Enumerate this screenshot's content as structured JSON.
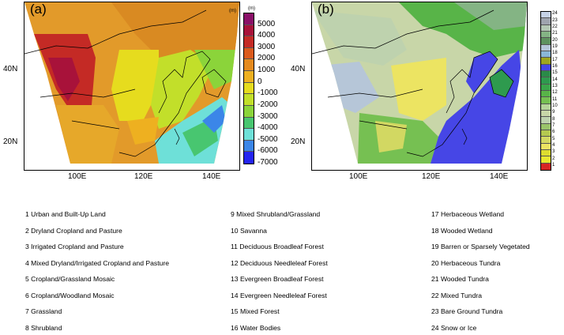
{
  "panels": [
    {
      "id": "a",
      "label": "(a)",
      "x_ticks": [
        "100E",
        "120E",
        "140E"
      ],
      "y_ticks": [
        "40N",
        "20N"
      ],
      "colorbar": {
        "unit": "(m)",
        "labels": [
          "5000",
          "4000",
          "3000",
          "2000",
          "1000",
          "0",
          "-1000",
          "-2000",
          "-3000",
          "-4000",
          "-5000",
          "-6000",
          "-7000"
        ],
        "colors": [
          "#8a1068",
          "#a8123a",
          "#c42a25",
          "#db5a1c",
          "#e58a1e",
          "#eeb020",
          "#e6dc1e",
          "#c2df2a",
          "#8bd43a",
          "#48c670",
          "#6ee0d8",
          "#3b86e8",
          "#2424f0"
        ]
      }
    },
    {
      "id": "b",
      "label": "(b)",
      "x_ticks": [
        "100E",
        "120E",
        "140E"
      ],
      "y_ticks": [
        "40N",
        "20N"
      ],
      "colorbar": {
        "labels": [
          "24",
          "23",
          "22",
          "21",
          "20",
          "19",
          "18",
          "17",
          "16",
          "15",
          "14",
          "13",
          "12",
          "11",
          "10",
          "9",
          "8",
          "7",
          "6",
          "5",
          "4",
          "3",
          "2",
          "1"
        ],
        "colors": [
          "#c6d2e6",
          "#9fa4ae",
          "#b4c8b4",
          "#84b484",
          "#5e925e",
          "#b6c6d8",
          "#8ab6d6",
          "#9ea61e",
          "#4646e6",
          "#2a8a48",
          "#2e9a4e",
          "#3aa64a",
          "#58b448",
          "#76c052",
          "#b6d49a",
          "#c8d6a8",
          "#bed2ae",
          "#9ac46a",
          "#b4c850",
          "#d2d862",
          "#ece462",
          "#dcdc30",
          "#e8e830",
          "#d62424"
        ]
      }
    }
  ],
  "landuse_legend": [
    "1  Urban and Built-Up Land",
    "2  Dryland Cropland and Pasture",
    "3  Irrigated Cropland and Pasture",
    "4  Mixed Dryland/Irrigated Cropland and Pasture",
    "5  Cropland/Grassland Mosaic",
    "6  Cropland/Woodland Mosaic",
    "7  Grassland",
    "8  Shrubland",
    "9  Mixed Shrubland/Grassland",
    "10  Savanna",
    "11  Deciduous Broadleaf Forest",
    "12  Deciduous Needleleaf Forest",
    "13  Evergreen Broadleaf Forest",
    "14  Evergreen Needleleaf Forest",
    "15  Mixed Forest",
    "16  Water Bodies",
    "17  Herbaceous Wetland",
    "18  Wooded Wetland",
    "19  Barren or Sparsely Vegetated",
    "20  Herbaceous Tundra",
    "21  Wooded Tundra",
    "22  Mixed Tundra",
    "23  Bare Ground Tundra",
    "24  Snow or Ice"
  ]
}
